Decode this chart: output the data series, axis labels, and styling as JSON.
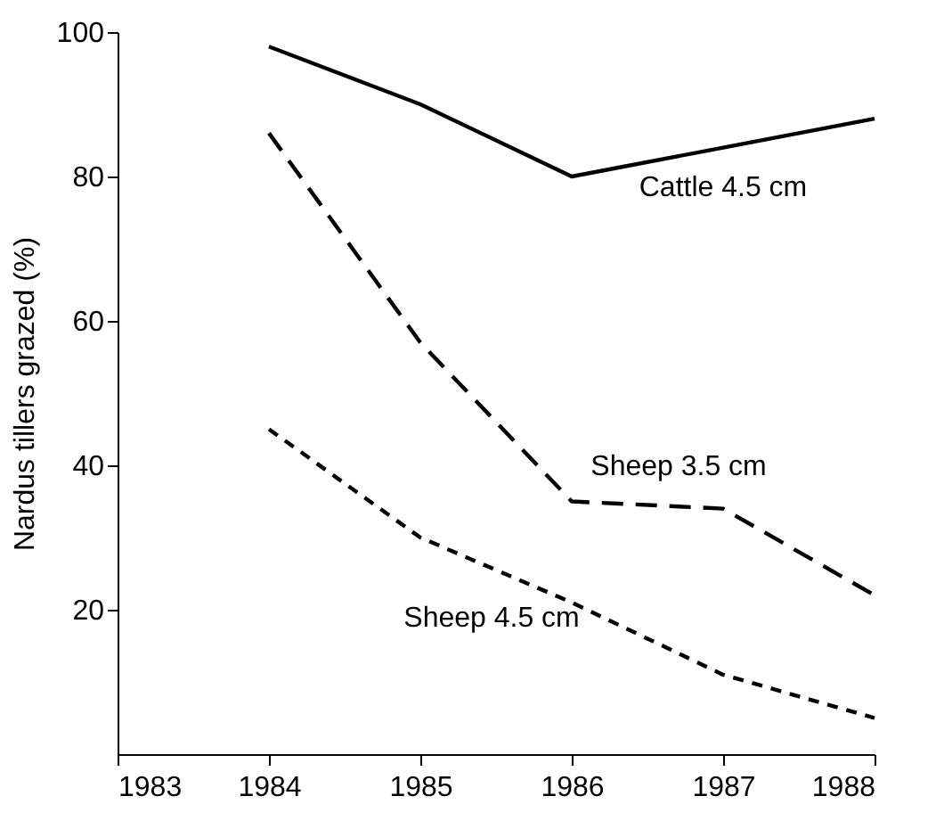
{
  "chart_data": {
    "type": "line",
    "ylabel": "Nardus tillers grazed (%)",
    "x": [
      1984,
      1985,
      1986,
      1987,
      1988
    ],
    "series": [
      {
        "name": "Cattle 4.5 cm",
        "color": "#000000",
        "line_style": "solid",
        "values": [
          98,
          90,
          80,
          84,
          88
        ]
      },
      {
        "name": "Sheep 3.5 cm",
        "color": "#000000",
        "line_style": "dashed",
        "values": [
          86,
          57,
          35,
          34,
          22
        ]
      },
      {
        "name": "Sheep 4.5 cm",
        "color": "#000000",
        "line_style": "dotted",
        "values": [
          45,
          30,
          21,
          11,
          5
        ]
      }
    ],
    "xlim": [
      1983,
      1988
    ],
    "xticks": [
      1983,
      1984,
      1985,
      1986,
      1987,
      1988
    ],
    "ylim": [
      0,
      100
    ],
    "yticks": [
      20,
      40,
      60,
      80,
      100
    ],
    "grid": false,
    "marker": "none"
  }
}
